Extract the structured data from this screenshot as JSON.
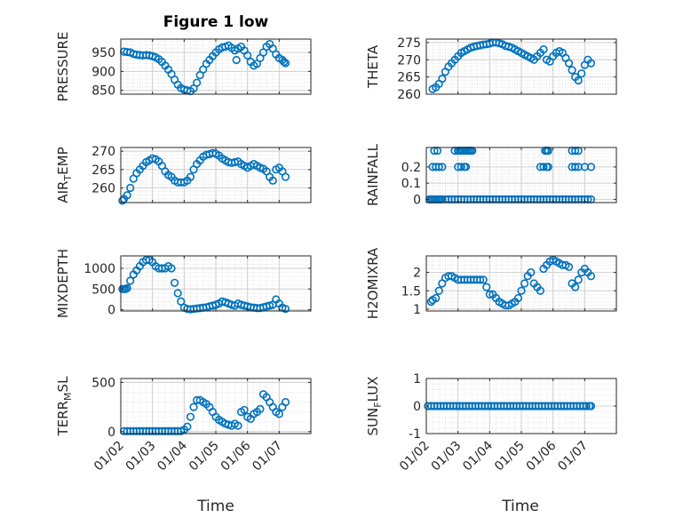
{
  "figure_title": "Figure 1 low",
  "colors": {
    "marker": "#0072BD",
    "axes": "#262626",
    "grid": "#dcdcdc"
  },
  "x_axis": {
    "label": "Time",
    "ticks": [
      "01/02",
      "01/03",
      "01/04",
      "01/05",
      "01/06",
      "01/07"
    ]
  },
  "chart_data": [
    {
      "type": "scatter",
      "ylabel": "PRESSURE",
      "ylim": [
        840,
        985
      ],
      "yticks": [
        "850",
        "900",
        "950"
      ],
      "ytick_values": [
        850,
        900,
        950
      ],
      "x": [
        1.1,
        1.2,
        1.3,
        1.4,
        1.5,
        1.6,
        1.7,
        1.8,
        1.9,
        2.0,
        2.1,
        2.2,
        2.3,
        2.4,
        2.5,
        2.6,
        2.7,
        2.8,
        2.9,
        3.0,
        3.1,
        3.2,
        3.3,
        3.4,
        3.5,
        3.6,
        3.7,
        3.8,
        3.9,
        4.0,
        4.1,
        4.2,
        4.3,
        4.4,
        4.5,
        4.6,
        4.65,
        4.7,
        4.8,
        4.9,
        5.0,
        5.1,
        5.2,
        5.3,
        5.4,
        5.5,
        5.6,
        5.7,
        5.8,
        5.9,
        6.0,
        6.1,
        6.15,
        6.2
      ],
      "y": [
        952,
        951,
        950,
        946,
        944,
        943,
        942,
        943,
        942,
        940,
        937,
        932,
        925,
        915,
        905,
        893,
        878,
        865,
        856,
        852,
        850,
        848,
        855,
        870,
        890,
        905,
        920,
        930,
        940,
        950,
        958,
        963,
        965,
        968,
        962,
        955,
        930,
        960,
        965,
        955,
        942,
        925,
        915,
        920,
        935,
        950,
        965,
        972,
        960,
        945,
        935,
        930,
        925,
        922
      ]
    },
    {
      "type": "scatter",
      "ylabel": "THETA",
      "ylim": [
        260,
        276
      ],
      "yticks": [
        "260",
        "265",
        "270",
        "275"
      ],
      "ytick_values": [
        260,
        265,
        270,
        275
      ],
      "x": [
        1.2,
        1.3,
        1.4,
        1.5,
        1.6,
        1.7,
        1.8,
        1.9,
        2.0,
        2.1,
        2.2,
        2.3,
        2.4,
        2.5,
        2.6,
        2.7,
        2.8,
        2.9,
        3.0,
        3.1,
        3.2,
        3.3,
        3.4,
        3.5,
        3.6,
        3.7,
        3.8,
        3.9,
        4.0,
        4.1,
        4.2,
        4.3,
        4.4,
        4.5,
        4.6,
        4.7,
        4.8,
        4.9,
        5.0,
        5.1,
        5.2,
        5.3,
        5.4,
        5.5,
        5.6,
        5.7,
        5.8,
        5.9,
        6.0,
        6.1,
        6.2
      ],
      "y": [
        261.5,
        262,
        263,
        264.5,
        266.5,
        268,
        269,
        270,
        271,
        272,
        272.5,
        273,
        273.5,
        273.8,
        274,
        274.2,
        274.4,
        274.5,
        274.7,
        275,
        275,
        274.8,
        274.5,
        274,
        273.8,
        273.5,
        273,
        272.5,
        272,
        271.5,
        271,
        270.5,
        270,
        271,
        272,
        273,
        270,
        269.5,
        271,
        272,
        272.5,
        272,
        270.5,
        269,
        267,
        265,
        264,
        266,
        268.5,
        270,
        269
      ]
    },
    {
      "type": "scatter",
      "ylabel": "AIR_TEMP",
      "ylim": [
        256,
        271
      ],
      "yticks": [
        "260",
        "265",
        "270"
      ],
      "ytick_values": [
        260,
        265,
        270
      ],
      "x": [
        1.05,
        1.1,
        1.2,
        1.3,
        1.4,
        1.5,
        1.6,
        1.7,
        1.8,
        1.9,
        2.0,
        2.1,
        2.2,
        2.3,
        2.4,
        2.5,
        2.6,
        2.7,
        2.8,
        2.9,
        3.0,
        3.1,
        3.2,
        3.3,
        3.4,
        3.5,
        3.6,
        3.7,
        3.8,
        3.9,
        4.0,
        4.1,
        4.2,
        4.3,
        4.4,
        4.5,
        4.6,
        4.7,
        4.8,
        4.9,
        5.0,
        5.1,
        5.2,
        5.3,
        5.4,
        5.5,
        5.6,
        5.7,
        5.8,
        5.9,
        6.0,
        6.1,
        6.2
      ],
      "y": [
        256.5,
        257,
        258,
        260,
        262.5,
        264,
        265,
        266,
        267,
        267.5,
        268,
        267.8,
        267.2,
        266,
        264.5,
        263.5,
        263,
        262,
        261.5,
        261.5,
        261.5,
        262,
        263,
        265,
        266.5,
        267.5,
        268.5,
        269,
        269.2,
        269.5,
        269.3,
        268.8,
        268,
        267.5,
        267,
        266.8,
        267,
        267.2,
        266.5,
        266,
        265.5,
        266,
        266.5,
        266,
        265.5,
        265.2,
        264.5,
        263,
        262,
        265,
        265.5,
        264.5,
        263
      ]
    },
    {
      "type": "scatter",
      "ylabel": "RAINFALL",
      "ylim": [
        -0.02,
        0.32
      ],
      "yticks": [
        "0",
        "0.1",
        "0.2"
      ],
      "ytick_values": [
        0,
        0.1,
        0.2
      ],
      "x": [
        1.1,
        1.15,
        1.2,
        1.25,
        1.3,
        1.35,
        1.4,
        1.45,
        1.5,
        1.6,
        1.7,
        1.8,
        1.9,
        2.0,
        2.1,
        2.2,
        2.3,
        2.4,
        2.5,
        2.6,
        2.7,
        2.8,
        2.9,
        3.0,
        3.1,
        3.2,
        3.3,
        3.4,
        3.5,
        3.6,
        3.7,
        3.8,
        3.9,
        4.0,
        4.1,
        4.2,
        4.3,
        4.4,
        4.5,
        4.6,
        4.7,
        4.8,
        4.9,
        5.0,
        5.1,
        5.2,
        5.3,
        5.4,
        5.5,
        5.6,
        5.7,
        5.8,
        5.9,
        6.0,
        6.1,
        6.2,
        1.2,
        1.3,
        1.4,
        1.5,
        2.0,
        2.1,
        2.2,
        2.25,
        4.6,
        4.7,
        4.8,
        4.85,
        5.6,
        5.7,
        5.8,
        6.0,
        6.2,
        1.25,
        1.35,
        1.9,
        2.0,
        2.05,
        2.1,
        2.15,
        2.2,
        2.25,
        2.3,
        2.35,
        2.4,
        2.45,
        4.75,
        4.8,
        4.85,
        5.6,
        5.7,
        5.8
      ],
      "y": [
        0,
        0,
        0,
        0,
        0,
        0,
        0,
        0,
        0,
        0,
        0,
        0,
        0,
        0,
        0,
        0,
        0,
        0,
        0,
        0,
        0,
        0,
        0,
        0,
        0,
        0,
        0,
        0,
        0,
        0,
        0,
        0,
        0,
        0,
        0,
        0,
        0,
        0,
        0,
        0,
        0,
        0,
        0,
        0,
        0,
        0,
        0,
        0,
        0,
        0,
        0,
        0,
        0,
        0,
        0,
        0,
        0.2,
        0.2,
        0.2,
        0.2,
        0.2,
        0.2,
        0.2,
        0.2,
        0.2,
        0.2,
        0.2,
        0.2,
        0.2,
        0.2,
        0.2,
        0.2,
        0.2,
        0.3,
        0.3,
        0.3,
        0.3,
        0.3,
        0.3,
        0.3,
        0.3,
        0.3,
        0.3,
        0.3,
        0.3,
        0.3,
        0.3,
        0.3,
        0.3,
        0.3,
        0.3,
        0.3
      ]
    },
    {
      "type": "scatter",
      "ylabel": "MIXDEPTH",
      "ylim": [
        -30,
        1300
      ],
      "yticks": [
        "0",
        "500",
        "1000"
      ],
      "ytick_values": [
        0,
        500,
        1000
      ],
      "x": [
        1.05,
        1.1,
        1.15,
        1.2,
        1.3,
        1.4,
        1.5,
        1.6,
        1.7,
        1.8,
        1.9,
        2.0,
        2.1,
        2.2,
        2.3,
        2.4,
        2.5,
        2.6,
        2.7,
        2.8,
        2.9,
        3.0,
        3.1,
        3.2,
        3.3,
        3.4,
        3.5,
        3.6,
        3.7,
        3.8,
        3.9,
        4.0,
        4.1,
        4.2,
        4.3,
        4.4,
        4.5,
        4.6,
        4.7,
        4.8,
        4.9,
        5.0,
        5.1,
        5.2,
        5.3,
        5.4,
        5.5,
        5.6,
        5.7,
        5.8,
        5.9,
        6.0,
        6.1,
        6.2
      ],
      "y": [
        500,
        500,
        500,
        520,
        700,
        850,
        950,
        1050,
        1150,
        1200,
        1200,
        1150,
        1050,
        1000,
        1000,
        1000,
        1050,
        1000,
        650,
        400,
        200,
        50,
        20,
        10,
        20,
        30,
        40,
        50,
        60,
        80,
        100,
        120,
        150,
        200,
        180,
        150,
        120,
        100,
        150,
        120,
        100,
        80,
        60,
        50,
        40,
        40,
        60,
        80,
        100,
        120,
        250,
        150,
        50,
        20
      ]
    },
    {
      "type": "scatter",
      "ylabel": "H2OMIXRA",
      "ylim": [
        0.95,
        2.45
      ],
      "yticks": [
        "1",
        "1.5",
        "2"
      ],
      "ytick_values": [
        1,
        1.5,
        2
      ],
      "x": [
        1.15,
        1.2,
        1.3,
        1.4,
        1.5,
        1.6,
        1.7,
        1.8,
        1.9,
        2.0,
        2.1,
        2.2,
        2.3,
        2.4,
        2.5,
        2.6,
        2.7,
        2.8,
        2.9,
        3.0,
        3.1,
        3.2,
        3.3,
        3.4,
        3.5,
        3.6,
        3.7,
        3.8,
        3.9,
        4.0,
        4.1,
        4.2,
        4.3,
        4.4,
        4.5,
        4.6,
        4.7,
        4.8,
        4.9,
        5.0,
        5.1,
        5.2,
        5.3,
        5.4,
        5.5,
        5.6,
        5.7,
        5.8,
        5.9,
        6.0,
        6.1,
        6.2
      ],
      "y": [
        1.2,
        1.25,
        1.3,
        1.5,
        1.7,
        1.85,
        1.9,
        1.9,
        1.85,
        1.8,
        1.8,
        1.8,
        1.8,
        1.8,
        1.8,
        1.8,
        1.8,
        1.8,
        1.6,
        1.4,
        1.4,
        1.3,
        1.2,
        1.15,
        1.1,
        1.1,
        1.15,
        1.2,
        1.3,
        1.5,
        1.7,
        1.9,
        2.0,
        1.7,
        1.6,
        1.5,
        2.1,
        2.2,
        2.3,
        2.35,
        2.3,
        2.25,
        2.2,
        2.2,
        2.15,
        1.7,
        1.6,
        1.8,
        2.0,
        2.1,
        2.0,
        1.9
      ]
    },
    {
      "type": "scatter",
      "ylabel": "TERR_MSL",
      "ylim": [
        -20,
        540
      ],
      "yticks": [
        "0",
        "500"
      ],
      "ytick_values": [
        0,
        500
      ],
      "x": [
        1.1,
        1.2,
        1.3,
        1.4,
        1.5,
        1.6,
        1.7,
        1.8,
        1.9,
        2.0,
        2.1,
        2.2,
        2.3,
        2.4,
        2.5,
        2.6,
        2.7,
        2.8,
        2.9,
        3.0,
        3.1,
        3.2,
        3.3,
        3.4,
        3.5,
        3.6,
        3.7,
        3.8,
        3.9,
        4.0,
        4.1,
        4.2,
        4.3,
        4.4,
        4.5,
        4.6,
        4.7,
        4.8,
        4.9,
        5.0,
        5.1,
        5.2,
        5.3,
        5.4,
        5.5,
        5.6,
        5.7,
        5.8,
        5.9,
        6.0,
        6.1,
        6.2
      ],
      "y": [
        5,
        5,
        5,
        5,
        5,
        5,
        5,
        5,
        5,
        5,
        5,
        5,
        5,
        5,
        5,
        5,
        5,
        5,
        5,
        20,
        50,
        150,
        250,
        320,
        320,
        300,
        280,
        250,
        200,
        150,
        120,
        100,
        80,
        70,
        60,
        80,
        60,
        200,
        220,
        150,
        130,
        180,
        200,
        230,
        380,
        350,
        300,
        250,
        200,
        180,
        250,
        300
      ]
    },
    {
      "type": "scatter",
      "ylabel": "SUN_FLUX",
      "ylim": [
        -1,
        1
      ],
      "yticks": [
        "-1",
        "0",
        "1"
      ],
      "ytick_values": [
        -1,
        0,
        1
      ],
      "x": [
        1.05,
        1.15,
        1.25,
        1.35,
        1.45,
        1.55,
        1.65,
        1.75,
        1.85,
        1.95,
        2.05,
        2.15,
        2.25,
        2.35,
        2.45,
        2.55,
        2.65,
        2.75,
        2.85,
        2.95,
        3.05,
        3.15,
        3.25,
        3.35,
        3.45,
        3.55,
        3.65,
        3.75,
        3.85,
        3.95,
        4.05,
        4.15,
        4.25,
        4.35,
        4.45,
        4.55,
        4.65,
        4.75,
        4.85,
        4.95,
        5.05,
        5.15,
        5.25,
        5.35,
        5.45,
        5.55,
        5.65,
        5.75,
        5.85,
        5.95,
        6.05,
        6.15,
        6.2
      ],
      "y": [
        0,
        0,
        0,
        0,
        0,
        0,
        0,
        0,
        0,
        0,
        0,
        0,
        0,
        0,
        0,
        0,
        0,
        0,
        0,
        0,
        0,
        0,
        0,
        0,
        0,
        0,
        0,
        0,
        0,
        0,
        0,
        0,
        0,
        0,
        0,
        0,
        0,
        0,
        0,
        0,
        0,
        0,
        0,
        0,
        0,
        0,
        0,
        0,
        0,
        0,
        0,
        0,
        0
      ]
    }
  ]
}
